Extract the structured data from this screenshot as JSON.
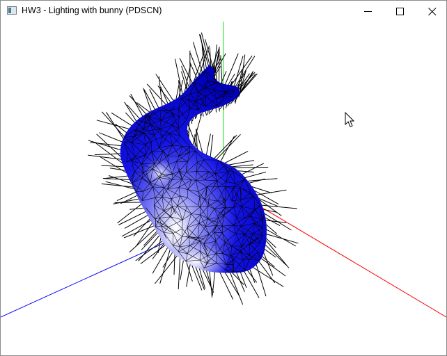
{
  "window": {
    "title": "HW3 - Lighting with bunny (PDSCN)",
    "icon": "app-window-icon",
    "controls": [
      "minimize-icon",
      "maximize-icon",
      "close-icon"
    ]
  },
  "scene": {
    "background": "#ffffff",
    "axes": {
      "x_color": "#ff0000",
      "y_color": "#00ff00",
      "z_color": "#0000ff"
    },
    "model": "bunny",
    "surface_color": "#0000dd",
    "highlight_color": "#ffffff",
    "wireframe_color": "#000000",
    "normals_color": "#000000"
  },
  "cursor": "arrow-cursor-icon"
}
